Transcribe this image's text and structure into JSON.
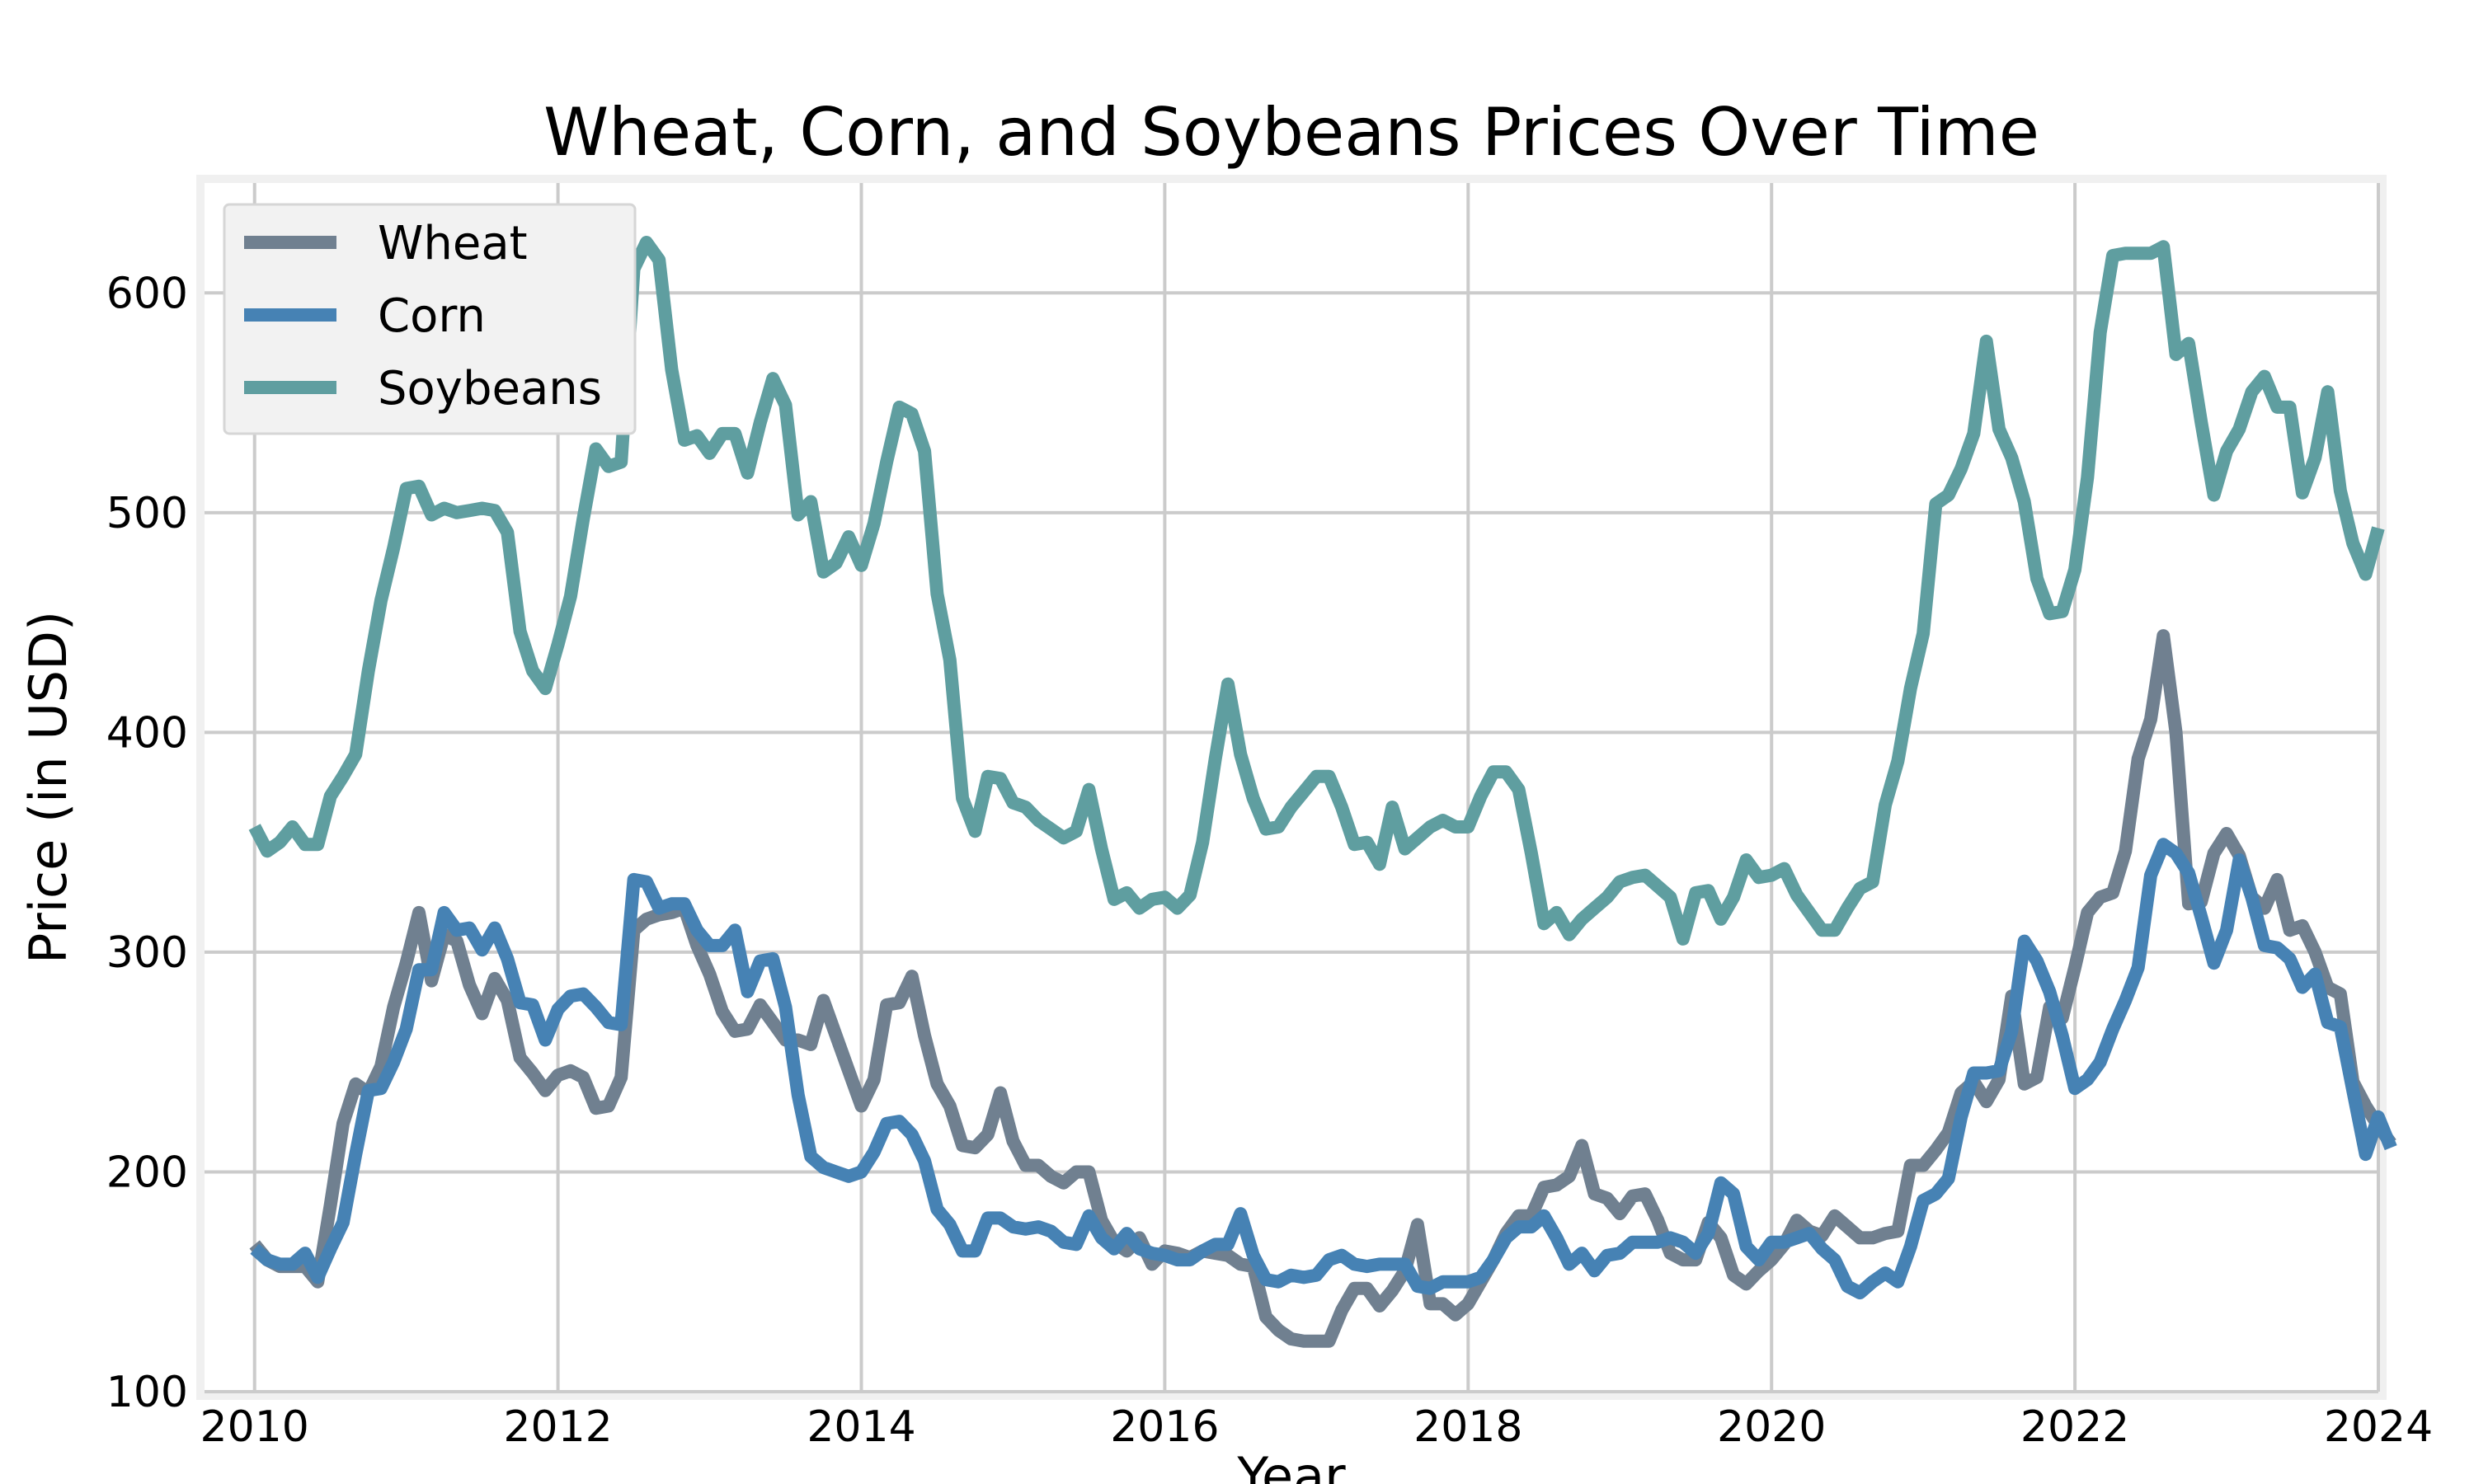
{
  "chart_data": {
    "type": "line",
    "title": "Wheat, Corn, and Soybeans Prices Over Time",
    "xlabel": "Year",
    "ylabel": "Price (in USD)",
    "xlim": [
      2009.67,
      2024.0
    ],
    "ylim": [
      100,
      650
    ],
    "x_ticks": [
      2010,
      2012,
      2014,
      2016,
      2018,
      2020,
      2022,
      2024
    ],
    "y_ticks": [
      100,
      200,
      300,
      400,
      500,
      600
    ],
    "grid": true,
    "legend_position": "top-left",
    "x_start": 2010.0,
    "x_step": 0.08333,
    "series": [
      {
        "name": "Wheat",
        "color": "#708090",
        "values": [
          167,
          160,
          157,
          157,
          157,
          150,
          185,
          222,
          240,
          236,
          248,
          275,
          295,
          318,
          287,
          308,
          305,
          285,
          272,
          288,
          278,
          252,
          245,
          237,
          244,
          246,
          243,
          229,
          230,
          243,
          310,
          315,
          317,
          318,
          320,
          303,
          290,
          273,
          264,
          265,
          276,
          268,
          260,
          260,
          258,
          278,
          262,
          246,
          230,
          242,
          276,
          277,
          289,
          262,
          240,
          230,
          212,
          211,
          217,
          236,
          214,
          203,
          203,
          198,
          195,
          200,
          200,
          178,
          168,
          164,
          170,
          158,
          164,
          163,
          161,
          164,
          163,
          162,
          158,
          157,
          134,
          128,
          124,
          123,
          123,
          123,
          137,
          147,
          147,
          139,
          146,
          155,
          176,
          140,
          140,
          135,
          140,
          150,
          160,
          172,
          180,
          180,
          193,
          194,
          198,
          212,
          190,
          188,
          181,
          189,
          190,
          178,
          163,
          160,
          160,
          177,
          170,
          153,
          149,
          155,
          160,
          167,
          178,
          173,
          171,
          180,
          175,
          170,
          170,
          172,
          173,
          203,
          203,
          210,
          218,
          236,
          241,
          232,
          242,
          280,
          240,
          243,
          275,
          270,
          293,
          318,
          325,
          327,
          346,
          388,
          406,
          444,
          400,
          322,
          323,
          345,
          354,
          344,
          325,
          320,
          333,
          310,
          312,
          300,
          284,
          281,
          241,
          230,
          221,
          213
        ]
      },
      {
        "name": "Corn",
        "color": "#4682B4",
        "values": [
          165,
          160,
          158,
          158,
          163,
          152,
          165,
          177,
          208,
          237,
          238,
          250,
          265,
          292,
          292,
          318,
          310,
          311,
          301,
          311,
          297,
          277,
          276,
          260,
          274,
          280,
          281,
          275,
          268,
          267,
          333,
          332,
          320,
          322,
          322,
          310,
          303,
          303,
          310,
          282,
          296,
          297,
          275,
          235,
          207,
          202,
          200,
          198,
          200,
          209,
          222,
          223,
          217,
          205,
          183,
          176,
          164,
          164,
          179,
          179,
          175,
          174,
          175,
          173,
          168,
          167,
          180,
          170,
          165,
          172,
          165,
          163,
          162,
          160,
          160,
          164,
          167,
          167,
          181,
          162,
          151,
          150,
          153,
          152,
          153,
          160,
          162,
          158,
          157,
          158,
          158,
          158,
          148,
          147,
          150,
          150,
          150,
          152,
          160,
          170,
          175,
          175,
          180,
          170,
          158,
          163,
          155,
          162,
          163,
          168,
          168,
          168,
          170,
          168,
          163,
          172,
          195,
          190,
          166,
          160,
          168,
          168,
          170,
          172,
          165,
          160,
          148,
          145,
          150,
          154,
          150,
          166,
          187,
          190,
          197,
          225,
          245,
          245,
          246,
          264,
          305,
          296,
          282,
          262,
          238,
          242,
          250,
          265,
          278,
          293,
          335,
          349,
          345,
          336,
          316,
          295,
          310,
          342,
          325,
          303,
          302,
          297,
          284,
          290,
          268,
          266,
          237,
          208,
          225,
          211
        ]
      },
      {
        "name": "Soybeans",
        "color": "#5F9EA0",
        "values": [
          357,
          346,
          350,
          357,
          349,
          349,
          371,
          380,
          390,
          428,
          460,
          484,
          511,
          512,
          499,
          502,
          500,
          501,
          502,
          501,
          491,
          446,
          428,
          420,
          440,
          462,
          497,
          529,
          521,
          523,
          611,
          623,
          615,
          565,
          533,
          535,
          527,
          536,
          536,
          518,
          541,
          561,
          549,
          499,
          505,
          473,
          477,
          489,
          476,
          495,
          523,
          548,
          545,
          528,
          463,
          433,
          370,
          355,
          380,
          379,
          368,
          366,
          360,
          356,
          352,
          355,
          374,
          347,
          324,
          327,
          320,
          324,
          325,
          320,
          326,
          350,
          388,
          422,
          390,
          370,
          356,
          357,
          366,
          373,
          380,
          380,
          366,
          349,
          350,
          340,
          366,
          347,
          352,
          357,
          360,
          357,
          357,
          371,
          382,
          382,
          374,
          345,
          313,
          318,
          308,
          315,
          320,
          325,
          332,
          334,
          335,
          330,
          325,
          306,
          327,
          328,
          315,
          325,
          342,
          334,
          335,
          338,
          326,
          318,
          310,
          310,
          320,
          329,
          332,
          367,
          387,
          420,
          445,
          504,
          508,
          520,
          536,
          578,
          538,
          525,
          505,
          470,
          454,
          455,
          474,
          516,
          582,
          617,
          618,
          618,
          618,
          621,
          572,
          577,
          541,
          508,
          528,
          538,
          555,
          562,
          548,
          548,
          509,
          525,
          555,
          510,
          486,
          472,
          493
        ]
      }
    ]
  }
}
